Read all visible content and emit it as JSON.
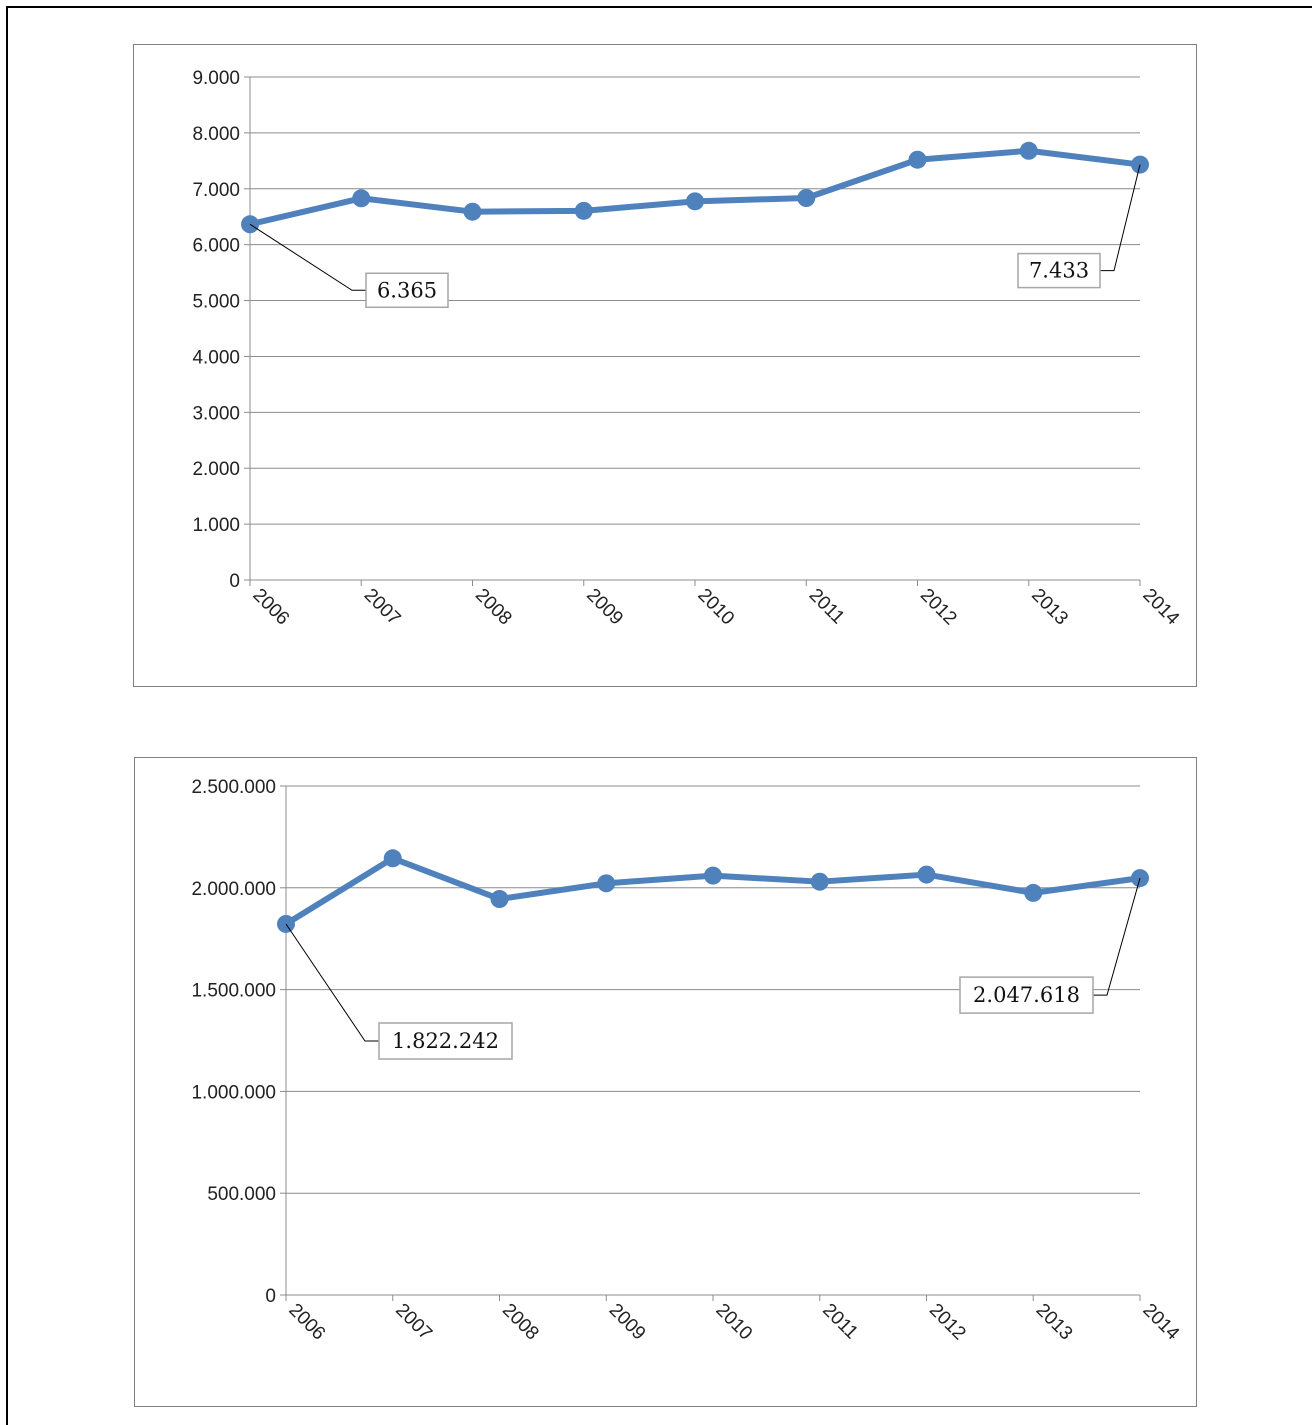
{
  "chart_data": [
    {
      "type": "line",
      "categories": [
        "2006",
        "2007",
        "2008",
        "2009",
        "2010",
        "2011",
        "2012",
        "2013",
        "2014"
      ],
      "series": [
        {
          "values": [
            6365,
            6830,
            6590,
            6605,
            6775,
            6835,
            7520,
            7680,
            7433
          ]
        }
      ],
      "ylim": [
        0,
        9000
      ],
      "y_ticks": [
        "0",
        "1.000",
        "2.000",
        "3.000",
        "4.000",
        "5.000",
        "6.000",
        "7.000",
        "8.000",
        "9.000"
      ],
      "grid": true,
      "legend": "none",
      "annotations": [
        {
          "category": "2006",
          "text": "6.365"
        },
        {
          "category": "2014",
          "text": "7.433"
        }
      ],
      "color": "#4f81bd"
    },
    {
      "type": "line",
      "categories": [
        "2006",
        "2007",
        "2008",
        "2009",
        "2010",
        "2011",
        "2012",
        "2013",
        "2014"
      ],
      "series": [
        {
          "values": [
            1822242,
            2145000,
            1945000,
            2022000,
            2060000,
            2030000,
            2065000,
            1975000,
            2047618
          ]
        }
      ],
      "ylim": [
        0,
        2500000
      ],
      "y_ticks": [
        "0",
        "500.000",
        "1.000.000",
        "1.500.000",
        "2.000.000",
        "2.500.000"
      ],
      "grid": true,
      "legend": "none",
      "annotations": [
        {
          "category": "2006",
          "text": "1.822.242"
        },
        {
          "category": "2014",
          "text": "2.047.618"
        }
      ],
      "color": "#4f81bd"
    }
  ]
}
